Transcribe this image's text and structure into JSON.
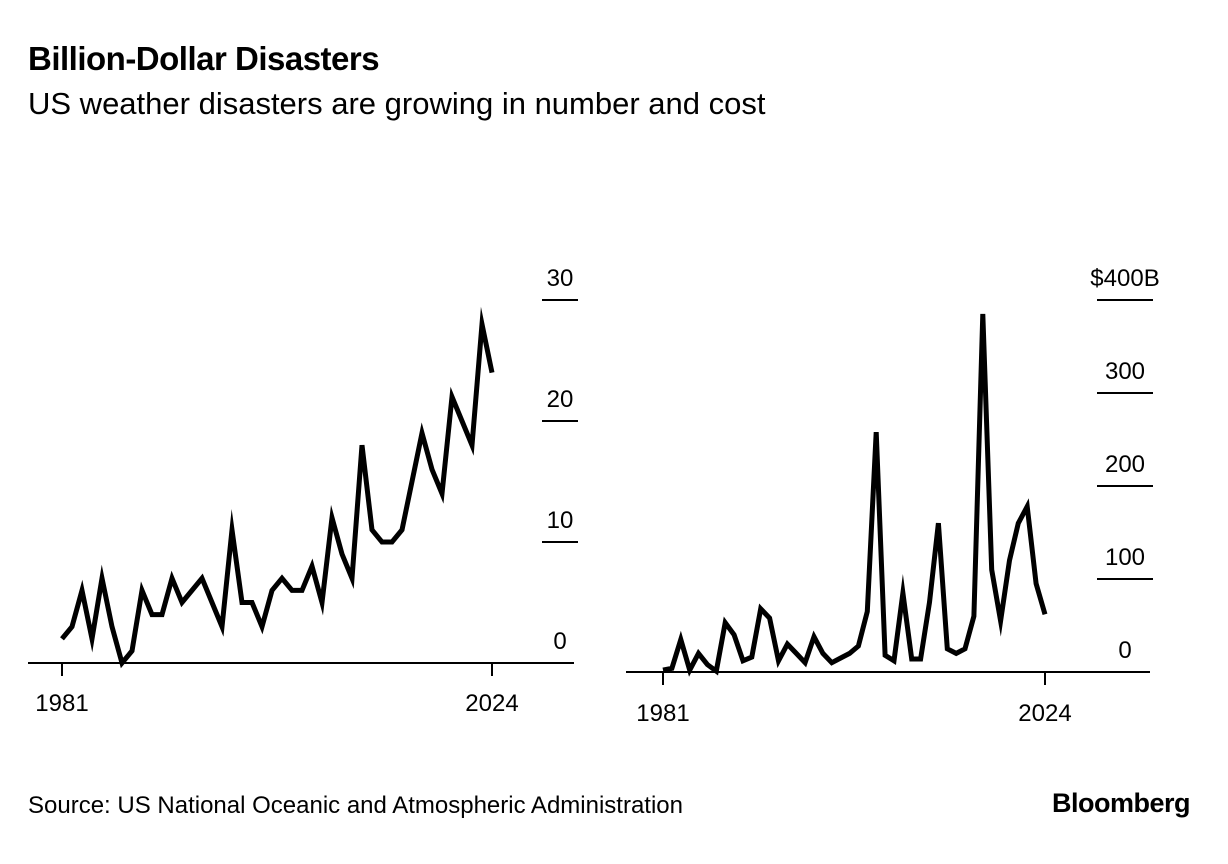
{
  "title": "Billion-Dollar Disasters",
  "subtitle": "US weather disasters are growing in number and cost",
  "source": "Source: US National Oceanic and Atmospheric Administration",
  "logo": "Bloomberg",
  "chart_data": [
    {
      "type": "line",
      "x": [
        1981,
        1982,
        1983,
        1984,
        1985,
        1986,
        1987,
        1988,
        1989,
        1990,
        1991,
        1992,
        1993,
        1994,
        1995,
        1996,
        1997,
        1998,
        1999,
        2000,
        2001,
        2002,
        2003,
        2004,
        2005,
        2006,
        2007,
        2008,
        2009,
        2010,
        2011,
        2012,
        2013,
        2014,
        2015,
        2016,
        2017,
        2018,
        2019,
        2020,
        2021,
        2022,
        2023,
        2024
      ],
      "series": [
        {
          "values": [
            2,
            3,
            6,
            2,
            7,
            3,
            0,
            1,
            6,
            4,
            4,
            7,
            5,
            6,
            7,
            5,
            3,
            11,
            5,
            5,
            3,
            6,
            7,
            6,
            6,
            8,
            5,
            12,
            9,
            7,
            18,
            11,
            10,
            10,
            11,
            15,
            19,
            16,
            14,
            22,
            20,
            18,
            28,
            24
          ]
        }
      ],
      "xticks": [
        "1981",
        "2024"
      ],
      "yticks": [
        "0",
        "10",
        "20",
        "30"
      ],
      "ylim": [
        0,
        30
      ],
      "grid": false,
      "line_color": "#000000"
    },
    {
      "type": "line",
      "x": [
        1981,
        1982,
        1983,
        1984,
        1985,
        1986,
        1987,
        1988,
        1989,
        1990,
        1991,
        1992,
        1993,
        1994,
        1995,
        1996,
        1997,
        1998,
        1999,
        2000,
        2001,
        2002,
        2003,
        2004,
        2005,
        2006,
        2007,
        2008,
        2009,
        2010,
        2011,
        2012,
        2013,
        2014,
        2015,
        2016,
        2017,
        2018,
        2019,
        2020,
        2021,
        2022,
        2023,
        2024
      ],
      "series": [
        {
          "values": [
            2,
            4,
            35,
            2,
            20,
            8,
            1,
            53,
            40,
            12,
            16,
            68,
            58,
            12,
            30,
            20,
            10,
            38,
            20,
            10,
            15,
            20,
            28,
            65,
            258,
            18,
            12,
            85,
            14,
            14,
            75,
            160,
            25,
            20,
            25,
            60,
            385,
            110,
            55,
            120,
            160,
            178,
            95,
            62
          ]
        }
      ],
      "xticks": [
        "1981",
        "2024"
      ],
      "yticks": [
        "0",
        "100",
        "200",
        "300",
        "$400B"
      ],
      "ylim": [
        0,
        400
      ],
      "grid": false,
      "line_color": "#000000"
    }
  ]
}
